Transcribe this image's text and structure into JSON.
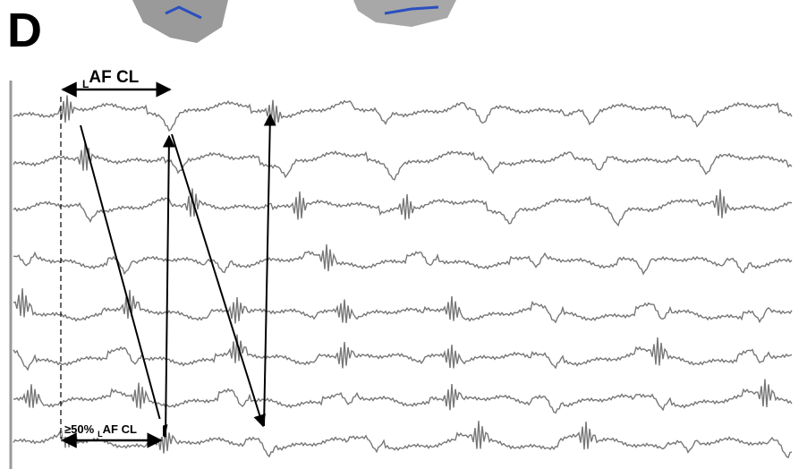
{
  "panel_label": "D",
  "top_label": {
    "subscript": "L",
    "main": "AF CL"
  },
  "bottom_label": {
    "prefix": "≥50%",
    "subscript": "L",
    "main": "AF CL"
  }
}
